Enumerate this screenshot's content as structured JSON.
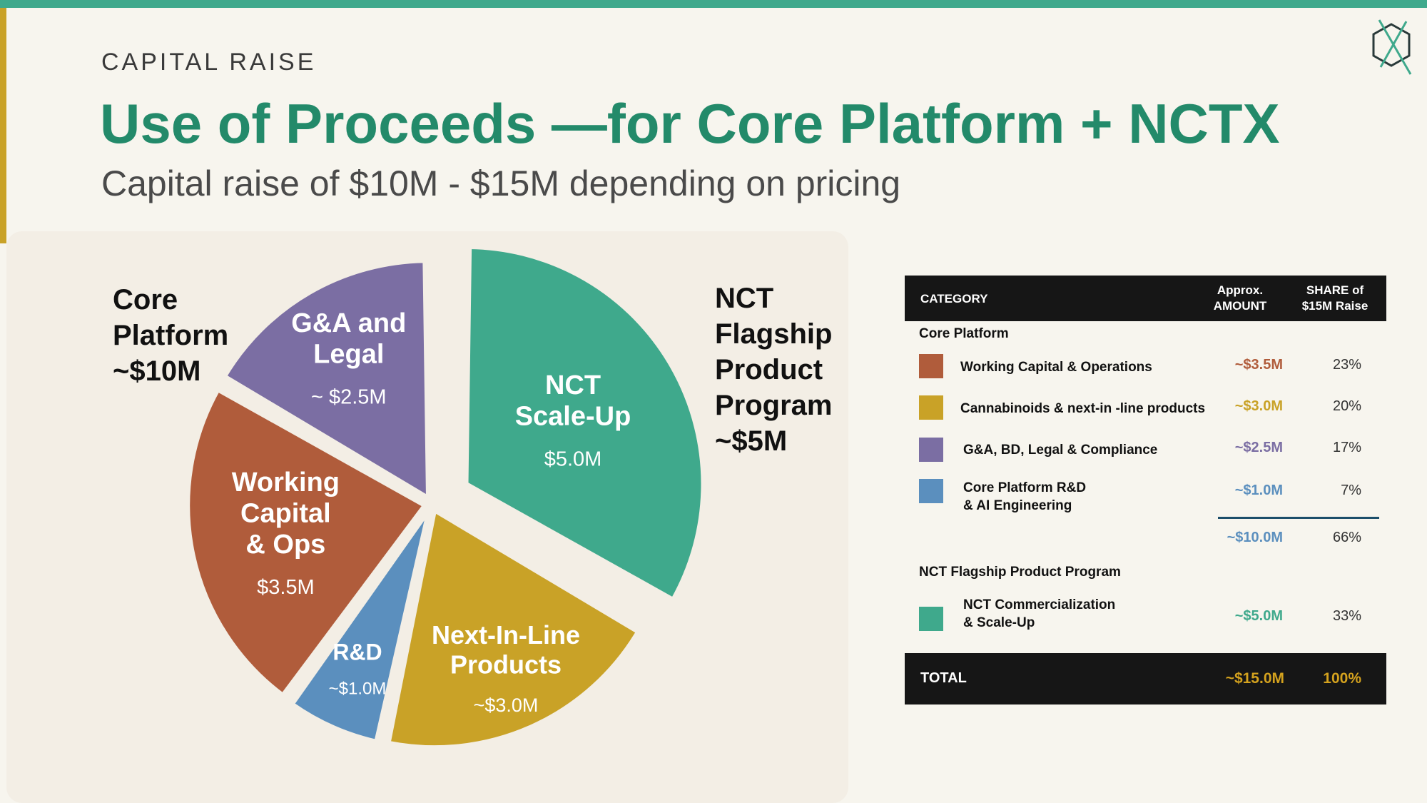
{
  "header": {
    "eyebrow": "CAPITAL RAISE",
    "title": "Use of Proceeds —for Core Platform + NCTX",
    "subtitle": "Capital raise of $10M - $15M depending on pricing"
  },
  "colors": {
    "accent_teal": "#3fa98c",
    "accent_gold": "#c9a227",
    "title_green": "#238a6a",
    "working_capital": "#b05c3b",
    "cannabinoids": "#c9a227",
    "ga_legal": "#7b6ea3",
    "rnd": "#5b8fbe",
    "nct": "#3fa98c"
  },
  "chart_data": {
    "type": "pie",
    "groups": [
      {
        "label": "Core Platform ~$10M",
        "lines": [
          "Core",
          "Platform",
          "~$10M"
        ]
      },
      {
        "label": "NCT Flagship Product Program ~$5M",
        "lines": [
          "NCT",
          "Flagship",
          "Product",
          "Program",
          "~$5M"
        ]
      }
    ],
    "slices": [
      {
        "key": "nct",
        "label_lines": [
          "NCT",
          "Scale-Up"
        ],
        "value_label": "$5.0M",
        "value": 5.0,
        "color": "#3fa98c",
        "exploded": true
      },
      {
        "key": "next_in_line",
        "label_lines": [
          "Next-In-Line",
          "Products"
        ],
        "value_label": "~$3.0M",
        "value": 3.0,
        "color": "#c9a227",
        "exploded": false
      },
      {
        "key": "rnd",
        "label_lines": [
          "R&D"
        ],
        "value_label": "~$1.0M",
        "value": 1.0,
        "color": "#5b8fbe",
        "exploded": false
      },
      {
        "key": "working_capital",
        "label_lines": [
          "Working",
          "Capital",
          "& Ops"
        ],
        "value_label": "$3.5M",
        "value": 3.5,
        "color": "#b05c3b",
        "exploded": false
      },
      {
        "key": "ga_legal",
        "label_lines": [
          "G&A and",
          "Legal"
        ],
        "value_label": "~ $2.5M",
        "value": 2.5,
        "color": "#7b6ea3",
        "exploded": false
      }
    ]
  },
  "table": {
    "headers": {
      "category": "CATEGORY",
      "amount": [
        "Approx.",
        "AMOUNT"
      ],
      "share": [
        "SHARE of",
        "$15M Raise"
      ]
    },
    "sections": [
      {
        "title": "Core Platform",
        "rows": [
          {
            "lines": [
              "Working Capital & Operations"
            ],
            "amount": "~$3.5M",
            "share": "23%",
            "color": "#b05c3b"
          },
          {
            "lines": [
              "Cannabinoids & next-in -line products"
            ],
            "amount": "~$3.0M",
            "share": "20%",
            "color": "#c9a227"
          },
          {
            "lines": [
              "G&A, BD, Legal & Compliance"
            ],
            "amount": "~$2.5M",
            "share": "17%",
            "color": "#7b6ea3"
          },
          {
            "lines": [
              "Core Platform R&D",
              "& AI Engineering"
            ],
            "amount": "~$1.0M",
            "share": "7%",
            "color": "#5b8fbe"
          }
        ],
        "subtotal": {
          "amount": "~$10.0M",
          "share": "66%",
          "color": "#5b8fbe"
        }
      },
      {
        "title": "NCT Flagship Product Program",
        "rows": [
          {
            "lines": [
              "NCT Commercialization",
              "& Scale-Up"
            ],
            "amount": "~$5.0M",
            "share": "33%",
            "color": "#3fa98c"
          }
        ]
      }
    ],
    "total": {
      "label": "TOTAL",
      "amount": "~$15.0M",
      "share": "100%"
    }
  }
}
